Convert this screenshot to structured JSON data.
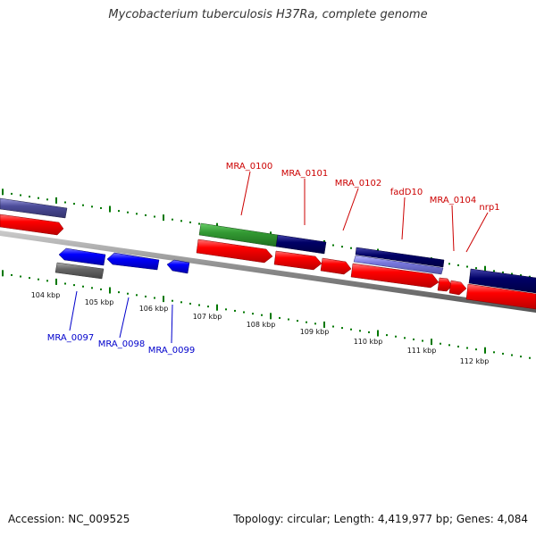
{
  "title": "Mycobacterium tuberculosis H37Ra, complete genome",
  "footer": {
    "accession": "Accession: NC_009525",
    "summary": "Topology: circular; Length: 4,419,977 bp; Genes: 4,084"
  },
  "ruler": {
    "ticks": [
      {
        "kbp": 104,
        "label": "104 kbp"
      },
      {
        "kbp": 105,
        "label": "105 kbp"
      },
      {
        "kbp": 106,
        "label": "106 kbp"
      },
      {
        "kbp": 107,
        "label": "107 kbp"
      },
      {
        "kbp": 108,
        "label": "108 kbp"
      },
      {
        "kbp": 109,
        "label": "109 kbp"
      },
      {
        "kbp": 110,
        "label": "110 kbp"
      },
      {
        "kbp": 111,
        "label": "111 kbp"
      },
      {
        "kbp": 112,
        "label": "112 kbp"
      }
    ]
  },
  "labels": {
    "top": [
      {
        "text": "MRA_0100",
        "color": "#cc0000"
      },
      {
        "text": "MRA_0101",
        "color": "#cc0000"
      },
      {
        "text": "MRA_0102",
        "color": "#cc0000"
      },
      {
        "text": "fadD10",
        "color": "#cc0000"
      },
      {
        "text": "MRA_0104",
        "color": "#cc0000"
      },
      {
        "text": "nrp1",
        "color": "#cc0000"
      }
    ],
    "bottom": [
      {
        "text": "MRA_0097",
        "color": "#0000cc"
      },
      {
        "text": "MRA_0098",
        "color": "#0000cc"
      },
      {
        "text": "MRA_0099",
        "color": "#0000cc"
      }
    ]
  },
  "colors": {
    "cds_forward": "#ff0000",
    "cds_reverse": "#0000ff",
    "backbone": "#888888",
    "ruler_ticks": "#007700",
    "feature_green": "#339933",
    "feature_navy": "#000066",
    "feature_purple": "#4c4c99",
    "feature_gray": "#666666"
  }
}
